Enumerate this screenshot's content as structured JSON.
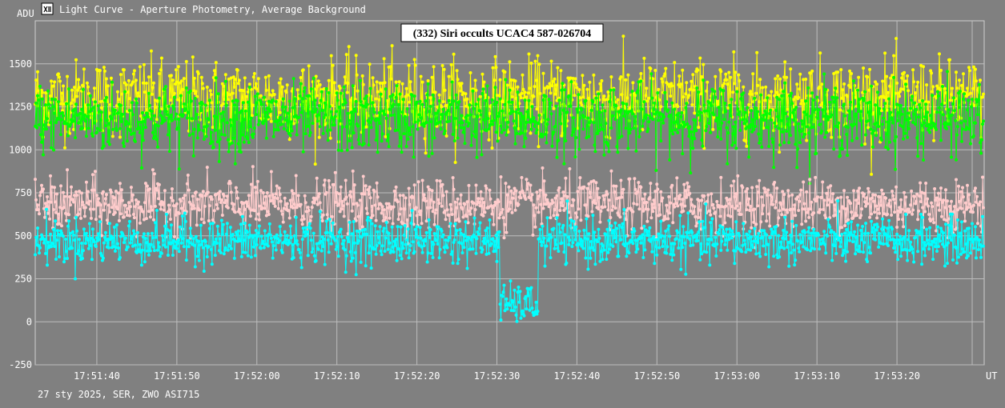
{
  "window": {
    "title": "Light Curve - Aperture Photometry, Average Background",
    "icon": "light-curve-app-icon"
  },
  "footer": {
    "info": "27 sty 2025, SER, ZWO ASI715"
  },
  "chart_data": {
    "type": "line",
    "title": "(332) Siri occults UCAC4 587-026704",
    "ylabel": "ADU",
    "xlabel": "UT",
    "ylim": [
      -250,
      1750
    ],
    "xlim": [
      "17:51:32.3",
      "17:53:30.9"
    ],
    "y_ticks": [
      -250,
      0,
      250,
      500,
      750,
      1000,
      1250,
      1500
    ],
    "x_ticks": [
      "17:51:40",
      "17:51:50",
      "17:52:00",
      "17:52:10",
      "17:52:20",
      "17:52:30",
      "17:52:40",
      "17:52:50",
      "17:53:00",
      "17:53:10",
      "17:53:20"
    ],
    "grid": true,
    "legend": "none",
    "frame_interval_s": 0.1,
    "series": [
      {
        "color": "#ffff00",
        "mean": 1300,
        "sd": 110,
        "summary": "flat, mean ~1300 ADU, scatter ~1000-1650"
      },
      {
        "color": "#00ff00",
        "mean": 1180,
        "sd": 100,
        "summary": "flat, mean ~1180 ADU, scatter ~900-1600"
      },
      {
        "color": "#ffcccc",
        "mean": 680,
        "sd": 75,
        "summary": "flat, mean ~680 ADU, scatter ~450-920"
      },
      {
        "color": "#00ffff",
        "mean": 470,
        "sd": 65,
        "summary": "mean ~470 ADU; drop to ~100 ADU during occultation",
        "event": {
          "start": "17:52:30.4",
          "end": "17:52:35.2",
          "level": 100,
          "sd": 55
        }
      }
    ]
  }
}
